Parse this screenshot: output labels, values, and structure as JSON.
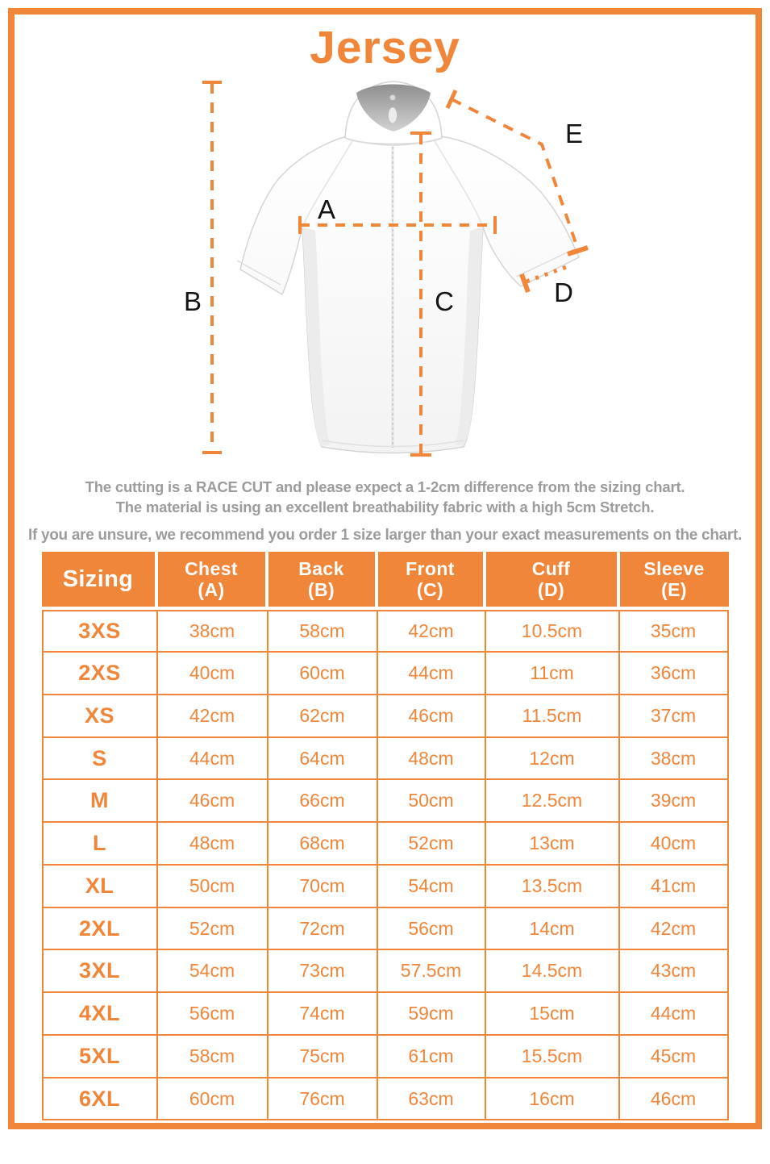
{
  "title": "Jersey",
  "accent_color": "#F0863A",
  "text_gray": "#9C9C9C",
  "figure": {
    "description": "white-cycling-jersey-with-measurement-lines",
    "labels": {
      "a": "A",
      "b": "B",
      "c": "C",
      "d": "D",
      "e": "E"
    }
  },
  "notes": {
    "line1": "The cutting is a RACE CUT and please expect a 1-2cm difference from the sizing chart.",
    "line2": "The material is using an excellent breathability fabric with a high 5cm Stretch.",
    "advice": "If you are unsure, we recommend you order 1 size larger than your exact measurements on the chart."
  },
  "table": {
    "headers": [
      {
        "top": "Sizing",
        "bottom": ""
      },
      {
        "top": "Chest",
        "bottom": "(A)"
      },
      {
        "top": "Back",
        "bottom": "(B)"
      },
      {
        "top": "Front",
        "bottom": "(C)"
      },
      {
        "top": "Cuff",
        "bottom": "(D)"
      },
      {
        "top": "Sleeve",
        "bottom": "(E)"
      }
    ]
  },
  "chart_data": {
    "type": "table",
    "title": "Jersey",
    "columns": [
      "Sizing",
      "Chest (A)",
      "Back (B)",
      "Front (C)",
      "Cuff (D)",
      "Sleeve (E)"
    ],
    "rows": [
      [
        "3XS",
        "38cm",
        "58cm",
        "42cm",
        "10.5cm",
        "35cm"
      ],
      [
        "2XS",
        "40cm",
        "60cm",
        "44cm",
        "11cm",
        "36cm"
      ],
      [
        "XS",
        "42cm",
        "62cm",
        "46cm",
        "11.5cm",
        "37cm"
      ],
      [
        "S",
        "44cm",
        "64cm",
        "48cm",
        "12cm",
        "38cm"
      ],
      [
        "M",
        "46cm",
        "66cm",
        "50cm",
        "12.5cm",
        "39cm"
      ],
      [
        "L",
        "48cm",
        "68cm",
        "52cm",
        "13cm",
        "40cm"
      ],
      [
        "XL",
        "50cm",
        "70cm",
        "54cm",
        "13.5cm",
        "41cm"
      ],
      [
        "2XL",
        "52cm",
        "72cm",
        "56cm",
        "14cm",
        "42cm"
      ],
      [
        "3XL",
        "54cm",
        "73cm",
        "57.5cm",
        "14.5cm",
        "43cm"
      ],
      [
        "4XL",
        "56cm",
        "74cm",
        "59cm",
        "15cm",
        "44cm"
      ],
      [
        "5XL",
        "58cm",
        "75cm",
        "61cm",
        "15.5cm",
        "45cm"
      ],
      [
        "6XL",
        "60cm",
        "76cm",
        "63cm",
        "16cm",
        "46cm"
      ]
    ]
  }
}
